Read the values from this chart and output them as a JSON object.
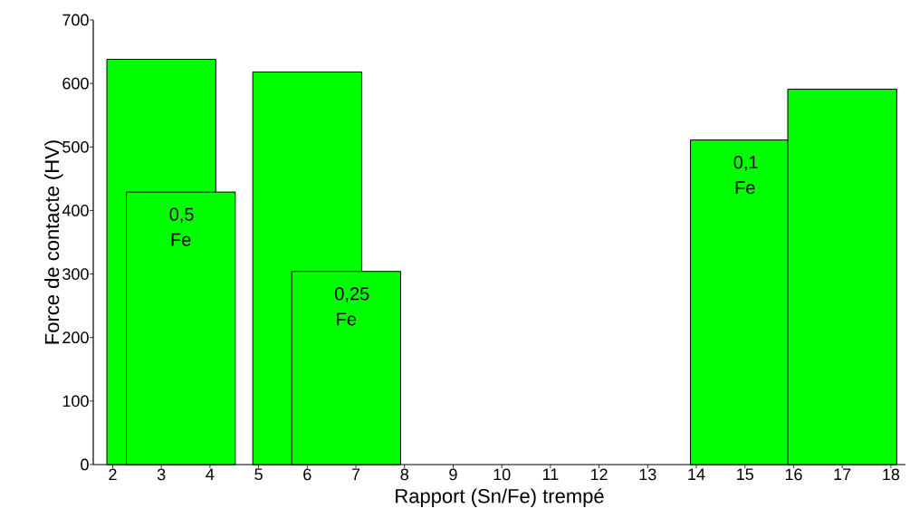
{
  "chart_data": {
    "type": "bar",
    "xlabel": "Rapport (Sn/Fe) trempé",
    "ylabel": "Force de contacte (HV)",
    "x": [
      3.0,
      3.4,
      6.0,
      6.8,
      15.0,
      17.0
    ],
    "values": [
      638,
      429,
      618,
      304,
      511,
      591
    ],
    "color": "#00ff00",
    "xlim": [
      1.6,
      18.3
    ],
    "xticks": [
      2,
      3,
      4,
      5,
      6,
      7,
      8,
      9,
      10,
      11,
      12,
      13,
      14,
      15,
      16,
      17,
      18
    ],
    "ylim": [
      0,
      700
    ],
    "yticks": [
      0,
      100,
      200,
      300,
      400,
      500,
      600,
      700
    ],
    "annotations": [
      {
        "text": "0,5 Fe",
        "x": 3.4,
        "y": 429
      },
      {
        "text": "0,25 Fe",
        "x": 6.8,
        "y": 304
      },
      {
        "text": "0,1 Fe",
        "x": 15.0,
        "y": 511
      }
    ]
  }
}
